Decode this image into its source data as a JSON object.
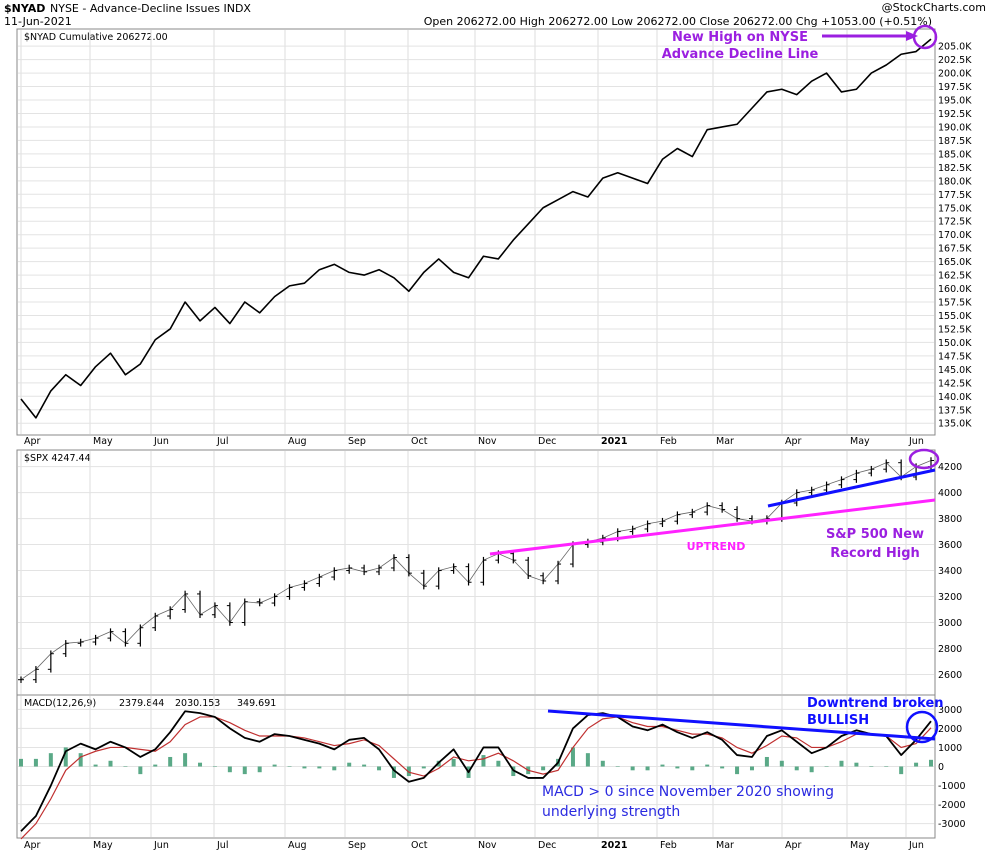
{
  "header": {
    "symbol": "$NYAD",
    "description": "NYSE - Advance-Decline Issues INDX",
    "date": "11-Jun-2021",
    "watermark": "@StockCharts.com",
    "ohlc": "Open 206272.00  High 206272.00  Low 206272.00  Close 206272.00  Chg +1053.00 (+0.51%)"
  },
  "colors": {
    "frame": "#888888",
    "price_line": "#000000",
    "purple": "#9b1fe0",
    "magenta": "#ff22ff",
    "blue": "#1010ff",
    "signal": "#c03030",
    "histogram": "#3d9a72"
  },
  "chart_data": [
    {
      "type": "line",
      "panel": "NYAD",
      "legend": "$NYAD Cumulative 206272.00",
      "months": [
        "Apr",
        "May",
        "Jun",
        "Jul",
        "Aug",
        "Sep",
        "Oct",
        "Nov",
        "Dec",
        "2021",
        "Feb",
        "Mar",
        "Apr",
        "May",
        "Jun"
      ],
      "ylim": [
        133000,
        208000
      ],
      "y_ticks": [
        135000,
        137500,
        140000,
        142500,
        145000,
        147500,
        150000,
        152500,
        155000,
        157500,
        160000,
        162500,
        165000,
        167500,
        170000,
        172500,
        175000,
        177500,
        180000,
        182500,
        185000,
        187500,
        190000,
        192500,
        195000,
        197500,
        200000,
        202500,
        205000
      ],
      "y_tick_labels": [
        "135.0K",
        "137.5K",
        "140.0K",
        "142.5K",
        "145.0K",
        "147.5K",
        "150.0K",
        "152.5K",
        "155.0K",
        "157.5K",
        "160.0K",
        "162.5K",
        "165.0K",
        "167.5K",
        "170.0K",
        "172.5K",
        "175.0K",
        "177.5K",
        "180.0K",
        "182.5K",
        "185.0K",
        "187.5K",
        "190.0K",
        "192.5K",
        "195.0K",
        "197.5K",
        "200.0K",
        "202.5K",
        "205.0K"
      ],
      "points": [
        [
          0,
          139500
        ],
        [
          0.15,
          136000
        ],
        [
          0.3,
          141000
        ],
        [
          0.45,
          144000
        ],
        [
          0.6,
          142000
        ],
        [
          0.75,
          145500
        ],
        [
          0.9,
          148000
        ],
        [
          1.05,
          144000
        ],
        [
          1.2,
          146000
        ],
        [
          1.35,
          150500
        ],
        [
          1.5,
          152500
        ],
        [
          1.65,
          157500
        ],
        [
          1.8,
          154000
        ],
        [
          1.95,
          156500
        ],
        [
          2.1,
          153500
        ],
        [
          2.25,
          157500
        ],
        [
          2.4,
          155500
        ],
        [
          2.55,
          158500
        ],
        [
          2.7,
          160500
        ],
        [
          2.85,
          161000
        ],
        [
          3.0,
          163500
        ],
        [
          3.15,
          164500
        ],
        [
          3.3,
          163000
        ],
        [
          3.45,
          162500
        ],
        [
          3.6,
          163500
        ],
        [
          3.75,
          162000
        ],
        [
          3.9,
          159500
        ],
        [
          4.05,
          163000
        ],
        [
          4.2,
          165500
        ],
        [
          4.35,
          163000
        ],
        [
          4.5,
          162000
        ],
        [
          4.65,
          166000
        ],
        [
          4.8,
          165500
        ],
        [
          4.95,
          169000
        ],
        [
          5.1,
          172000
        ],
        [
          5.25,
          175000
        ],
        [
          5.4,
          176500
        ],
        [
          5.55,
          178000
        ],
        [
          5.7,
          177000
        ],
        [
          5.85,
          180500
        ],
        [
          6.0,
          181500
        ],
        [
          6.15,
          180500
        ],
        [
          6.3,
          179500
        ],
        [
          6.45,
          184000
        ],
        [
          6.6,
          186000
        ],
        [
          6.75,
          184500
        ],
        [
          6.9,
          189500
        ],
        [
          7.05,
          190000
        ],
        [
          7.2,
          190500
        ],
        [
          7.35,
          193500
        ],
        [
          7.5,
          196500
        ],
        [
          7.65,
          197000
        ],
        [
          7.8,
          196000
        ],
        [
          7.95,
          198500
        ],
        [
          8.1,
          200000
        ],
        [
          8.25,
          196500
        ],
        [
          8.4,
          197000
        ],
        [
          8.55,
          200000
        ],
        [
          8.7,
          201500
        ],
        [
          8.85,
          203500
        ],
        [
          9.0,
          204000
        ],
        [
          9.15,
          206300
        ]
      ],
      "annotations": [
        "New High on NYSE",
        "Advance Decline Line"
      ]
    },
    {
      "type": "ohlc",
      "panel": "SPX",
      "legend": "$SPX 4247.44",
      "ylim": [
        2450,
        4320
      ],
      "y_ticks": [
        2600,
        2800,
        3000,
        3200,
        3400,
        3600,
        3800,
        4000,
        4200
      ],
      "y_tick_labels": [
        "2600",
        "2800",
        "3000",
        "3200",
        "3400",
        "3600",
        "3800",
        "4000",
        "4200"
      ],
      "points": [
        [
          0,
          2560
        ],
        [
          0.15,
          2640
        ],
        [
          0.3,
          2760
        ],
        [
          0.45,
          2840
        ],
        [
          0.6,
          2850
        ],
        [
          0.75,
          2880
        ],
        [
          0.9,
          2930
        ],
        [
          1.05,
          2840
        ],
        [
          1.2,
          2960
        ],
        [
          1.35,
          3050
        ],
        [
          1.5,
          3100
        ],
        [
          1.65,
          3220
        ],
        [
          1.8,
          3060
        ],
        [
          1.95,
          3130
        ],
        [
          2.1,
          3000
        ],
        [
          2.25,
          3160
        ],
        [
          2.4,
          3150
        ],
        [
          2.55,
          3200
        ],
        [
          2.7,
          3270
        ],
        [
          2.85,
          3300
        ],
        [
          3.0,
          3350
        ],
        [
          3.15,
          3400
        ],
        [
          3.3,
          3420
        ],
        [
          3.45,
          3390
        ],
        [
          3.6,
          3420
        ],
        [
          3.75,
          3500
        ],
        [
          3.9,
          3380
        ],
        [
          4.05,
          3280
        ],
        [
          4.2,
          3400
        ],
        [
          4.35,
          3430
        ],
        [
          4.5,
          3310
        ],
        [
          4.65,
          3480
        ],
        [
          4.8,
          3530
        ],
        [
          4.95,
          3480
        ],
        [
          5.1,
          3360
        ],
        [
          5.25,
          3320
        ],
        [
          5.4,
          3450
        ],
        [
          5.55,
          3600
        ],
        [
          5.7,
          3620
        ],
        [
          5.85,
          3650
        ],
        [
          6.0,
          3700
        ],
        [
          6.15,
          3720
        ],
        [
          6.3,
          3760
        ],
        [
          6.45,
          3780
        ],
        [
          6.6,
          3830
        ],
        [
          6.75,
          3850
        ],
        [
          6.9,
          3900
        ],
        [
          7.05,
          3870
        ],
        [
          7.2,
          3800
        ],
        [
          7.35,
          3780
        ],
        [
          7.5,
          3800
        ],
        [
          7.65,
          3920
        ],
        [
          7.8,
          4000
        ],
        [
          7.95,
          4020
        ],
        [
          8.1,
          4060
        ],
        [
          8.25,
          4100
        ],
        [
          8.4,
          4150
        ],
        [
          8.55,
          4180
        ],
        [
          8.7,
          4230
        ],
        [
          8.85,
          4120
        ],
        [
          9.0,
          4200
        ],
        [
          9.15,
          4247
        ]
      ],
      "annotations": [
        "UPTREND",
        "S&P 500 New",
        "Record High"
      ]
    },
    {
      "type": "line",
      "panel": "MACD",
      "legend": {
        "name": "MACD(12,26,9)",
        "macd": "2379.844",
        "signal": "2030.153",
        "histogram": "349.691"
      },
      "ylim": [
        -3700,
        3700
      ],
      "y_ticks": [
        -3000,
        -2000,
        -1000,
        0,
        1000,
        2000,
        3000
      ],
      "y_tick_labels": [
        "-3000",
        "-2000",
        "-1000",
        "0",
        "1000",
        "2000",
        "3000"
      ],
      "macd": [
        [
          0,
          -3400
        ],
        [
          0.15,
          -2600
        ],
        [
          0.3,
          -1000
        ],
        [
          0.45,
          800
        ],
        [
          0.6,
          1200
        ],
        [
          0.75,
          900
        ],
        [
          0.9,
          1300
        ],
        [
          1.05,
          1000
        ],
        [
          1.2,
          500
        ],
        [
          1.35,
          900
        ],
        [
          1.5,
          1800
        ],
        [
          1.65,
          2900
        ],
        [
          1.8,
          2800
        ],
        [
          1.95,
          2600
        ],
        [
          2.1,
          2000
        ],
        [
          2.25,
          1500
        ],
        [
          2.4,
          1300
        ],
        [
          2.55,
          1700
        ],
        [
          2.7,
          1600
        ],
        [
          2.85,
          1400
        ],
        [
          3.0,
          1200
        ],
        [
          3.15,
          900
        ],
        [
          3.3,
          1400
        ],
        [
          3.45,
          1500
        ],
        [
          3.6,
          900
        ],
        [
          3.75,
          -200
        ],
        [
          3.9,
          -800
        ],
        [
          4.05,
          -600
        ],
        [
          4.2,
          200
        ],
        [
          4.35,
          900
        ],
        [
          4.5,
          -300
        ],
        [
          4.65,
          1000
        ],
        [
          4.8,
          1000
        ],
        [
          4.95,
          -200
        ],
        [
          5.1,
          -600
        ],
        [
          5.25,
          -600
        ],
        [
          5.4,
          200
        ],
        [
          5.55,
          2000
        ],
        [
          5.7,
          2700
        ],
        [
          5.85,
          2800
        ],
        [
          6.0,
          2600
        ],
        [
          6.15,
          2100
        ],
        [
          6.3,
          1900
        ],
        [
          6.45,
          2200
        ],
        [
          6.6,
          1800
        ],
        [
          6.75,
          1500
        ],
        [
          6.9,
          1800
        ],
        [
          7.05,
          1400
        ],
        [
          7.2,
          600
        ],
        [
          7.35,
          500
        ],
        [
          7.5,
          1600
        ],
        [
          7.65,
          1900
        ],
        [
          7.8,
          1300
        ],
        [
          7.95,
          700
        ],
        [
          8.1,
          1000
        ],
        [
          8.25,
          1600
        ],
        [
          8.4,
          1900
        ],
        [
          8.55,
          1700
        ],
        [
          8.7,
          1600
        ],
        [
          8.85,
          600
        ],
        [
          9.0,
          1400
        ],
        [
          9.15,
          2380
        ]
      ],
      "signal": [
        [
          0,
          -3800
        ],
        [
          0.15,
          -3000
        ],
        [
          0.3,
          -1700
        ],
        [
          0.45,
          -200
        ],
        [
          0.6,
          500
        ],
        [
          0.75,
          800
        ],
        [
          0.9,
          1000
        ],
        [
          1.05,
          1000
        ],
        [
          1.2,
          900
        ],
        [
          1.35,
          800
        ],
        [
          1.5,
          1300
        ],
        [
          1.65,
          2200
        ],
        [
          1.8,
          2600
        ],
        [
          1.95,
          2600
        ],
        [
          2.1,
          2300
        ],
        [
          2.25,
          1900
        ],
        [
          2.4,
          1600
        ],
        [
          2.55,
          1600
        ],
        [
          2.7,
          1600
        ],
        [
          2.85,
          1500
        ],
        [
          3.0,
          1300
        ],
        [
          3.15,
          1100
        ],
        [
          3.3,
          1200
        ],
        [
          3.45,
          1400
        ],
        [
          3.6,
          1100
        ],
        [
          3.75,
          400
        ],
        [
          3.9,
          -300
        ],
        [
          4.05,
          -500
        ],
        [
          4.2,
          -100
        ],
        [
          4.35,
          500
        ],
        [
          4.5,
          300
        ],
        [
          4.65,
          400
        ],
        [
          4.8,
          700
        ],
        [
          4.95,
          300
        ],
        [
          5.1,
          -200
        ],
        [
          5.25,
          -400
        ],
        [
          5.4,
          -200
        ],
        [
          5.55,
          1000
        ],
        [
          5.7,
          2000
        ],
        [
          5.85,
          2500
        ],
        [
          6.0,
          2600
        ],
        [
          6.15,
          2300
        ],
        [
          6.3,
          2100
        ],
        [
          6.45,
          2100
        ],
        [
          6.6,
          1900
        ],
        [
          6.75,
          1700
        ],
        [
          6.9,
          1700
        ],
        [
          7.05,
          1500
        ],
        [
          7.2,
          1000
        ],
        [
          7.35,
          700
        ],
        [
          7.5,
          1100
        ],
        [
          7.65,
          1600
        ],
        [
          7.8,
          1500
        ],
        [
          7.95,
          1000
        ],
        [
          8.1,
          1000
        ],
        [
          8.25,
          1300
        ],
        [
          8.4,
          1700
        ],
        [
          8.55,
          1700
        ],
        [
          8.7,
          1600
        ],
        [
          8.85,
          1000
        ],
        [
          9.0,
          1200
        ],
        [
          9.15,
          2030
        ]
      ],
      "annotations": [
        "Downtrend broken",
        "BULLISH",
        "MACD > 0 since November 2020 showing",
        "underlying strength"
      ]
    }
  ]
}
